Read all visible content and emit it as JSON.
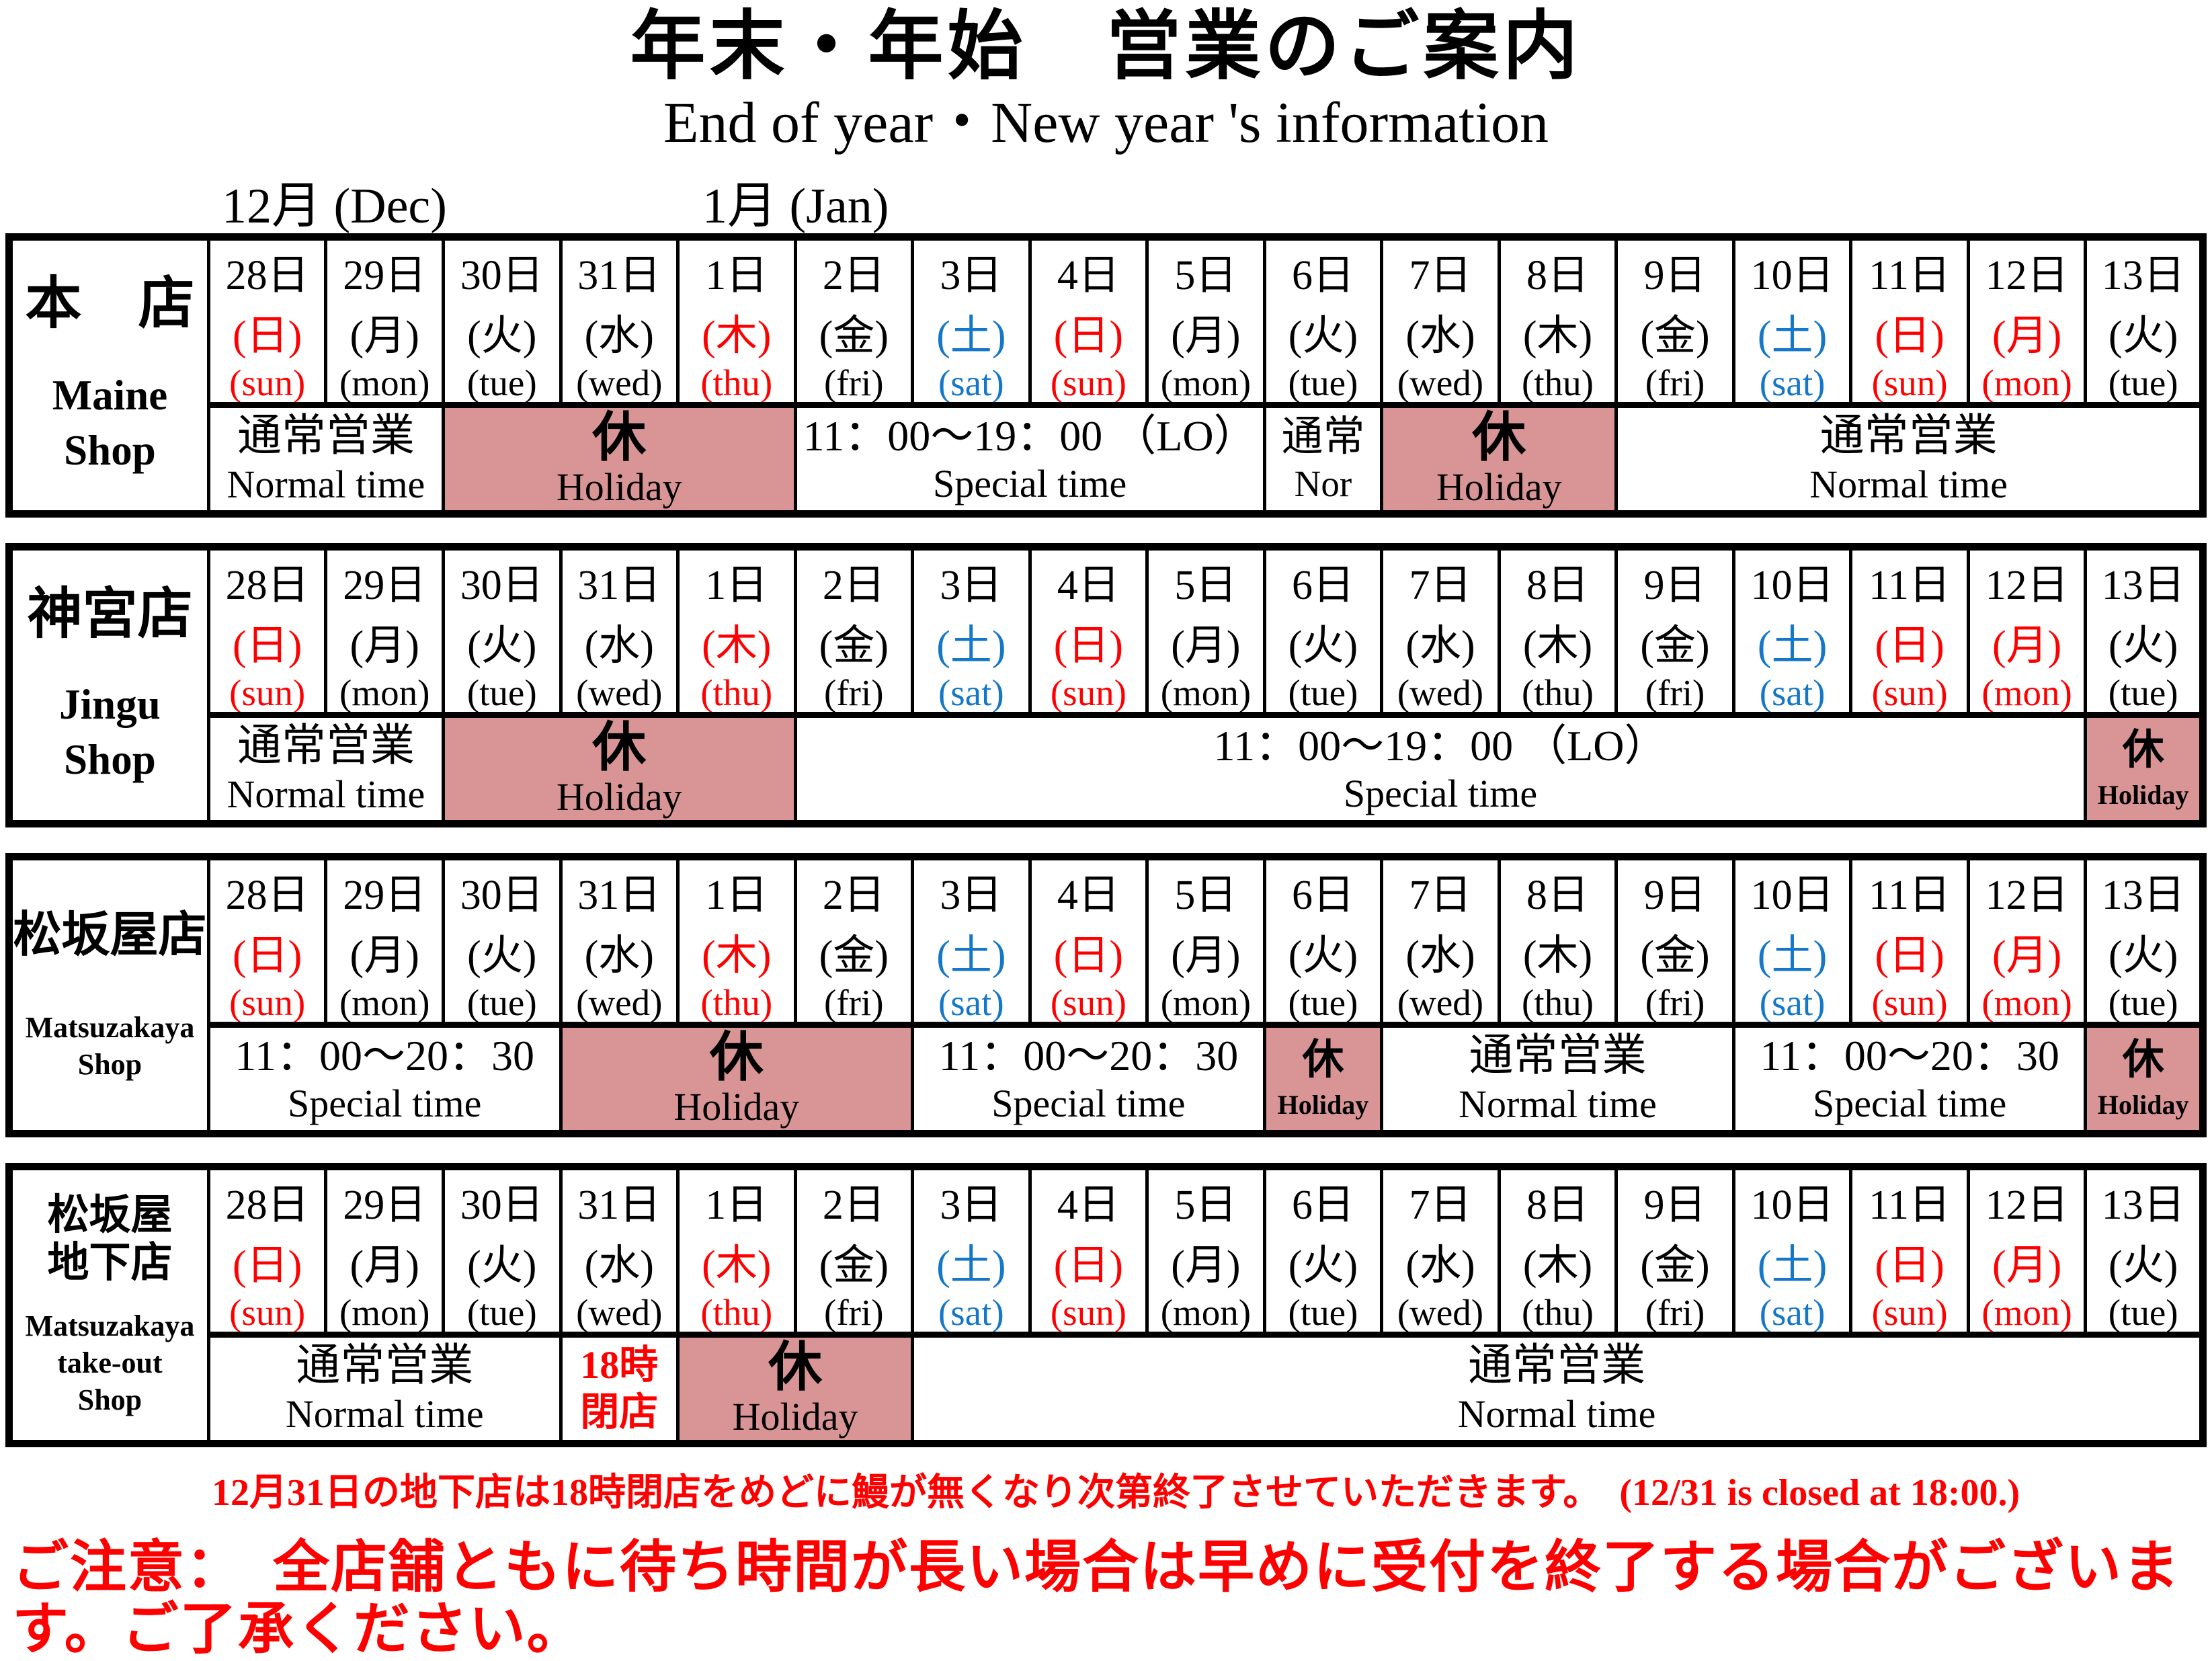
{
  "title": "年末・年始　営業のご案内",
  "subtitle": "End of year・New year 's  information",
  "month_labels": {
    "dec": "12月 (Dec)",
    "jan": "1月 (Jan)"
  },
  "colors": {
    "holiday_bg": "#d99596",
    "red": "#ff0000",
    "blue": "#1577c8",
    "black": "#000000"
  },
  "dates": [
    {
      "day": "28日",
      "jp": "(日)",
      "en": "(sun)",
      "color": "red"
    },
    {
      "day": "29日",
      "jp": "(月)",
      "en": "(mon)",
      "color": "black"
    },
    {
      "day": "30日",
      "jp": "(火)",
      "en": "(tue)",
      "color": "black"
    },
    {
      "day": "31日",
      "jp": "(水)",
      "en": "(wed)",
      "color": "black"
    },
    {
      "day": "1日",
      "jp": "(木)",
      "en": "(thu)",
      "color": "red"
    },
    {
      "day": "2日",
      "jp": "(金)",
      "en": "(fri)",
      "color": "black"
    },
    {
      "day": "3日",
      "jp": "(土)",
      "en": "(sat)",
      "color": "blue"
    },
    {
      "day": "4日",
      "jp": "(日)",
      "en": "(sun)",
      "color": "red"
    },
    {
      "day": "5日",
      "jp": "(月)",
      "en": "(mon)",
      "color": "black"
    },
    {
      "day": "6日",
      "jp": "(火)",
      "en": "(tue)",
      "color": "black"
    },
    {
      "day": "7日",
      "jp": "(水)",
      "en": "(wed)",
      "color": "black"
    },
    {
      "day": "8日",
      "jp": "(木)",
      "en": "(thu)",
      "color": "black"
    },
    {
      "day": "9日",
      "jp": "(金)",
      "en": "(fri)",
      "color": "black"
    },
    {
      "day": "10日",
      "jp": "(土)",
      "en": "(sat)",
      "color": "blue"
    },
    {
      "day": "11日",
      "jp": "(日)",
      "en": "(sun)",
      "color": "red"
    },
    {
      "day": "12日",
      "jp": "(月)",
      "en": "(mon)",
      "color": "red"
    },
    {
      "day": "13日",
      "jp": "(火)",
      "en": "(tue)",
      "color": "black"
    }
  ],
  "tables": [
    {
      "shop_jp_lines": [
        "本　店"
      ],
      "shop_en_lines": [
        "Maine",
        "Shop"
      ],
      "jp_size": "xl",
      "en_size": "lg",
      "hours": [
        {
          "span": 2,
          "type": "normal",
          "jp": "通常営業",
          "en": "Normal time"
        },
        {
          "span": 3,
          "type": "holiday",
          "jp": "休",
          "en": "Holiday"
        },
        {
          "span": 4,
          "type": "special",
          "jp": "11：00～19：00 （LO）",
          "en": "Special time"
        },
        {
          "span": 1,
          "type": "clip",
          "jp": "通常",
          "en": "Nor"
        },
        {
          "span": 2,
          "type": "holiday",
          "jp": "休",
          "en": "Holiday"
        },
        {
          "span": 5,
          "type": "normal",
          "jp": "通常営業",
          "en": "Normal time"
        }
      ]
    },
    {
      "shop_jp_lines": [
        "神宮店"
      ],
      "shop_en_lines": [
        "Jingu",
        "Shop"
      ],
      "jp_size": "lg",
      "en_size": "lg",
      "hours": [
        {
          "span": 2,
          "type": "normal",
          "jp": "通常営業",
          "en": "Normal time"
        },
        {
          "span": 3,
          "type": "holiday",
          "jp": "休",
          "en": "Holiday"
        },
        {
          "span": 11,
          "type": "special",
          "jp": "11：00～19：00 （LO）",
          "en": "Special time"
        },
        {
          "span": 1,
          "type": "holiday-small",
          "jp": "休",
          "en": "Holiday"
        }
      ]
    },
    {
      "shop_jp_lines": [
        "松坂屋店"
      ],
      "shop_en_lines": [
        "Matsuzakaya",
        "Shop"
      ],
      "jp_size": "md",
      "en_size": "sm",
      "hours": [
        {
          "span": 3,
          "type": "special",
          "jp": "11：00～20：30",
          "en": "Special time"
        },
        {
          "span": 3,
          "type": "holiday",
          "jp": "休",
          "en": "Holiday"
        },
        {
          "span": 3,
          "type": "special",
          "jp": "11：00～20：30",
          "en": "Special time"
        },
        {
          "span": 1,
          "type": "holiday-small",
          "jp": "休",
          "en": "Holiday"
        },
        {
          "span": 3,
          "type": "normal",
          "jp": "通常営業",
          "en": "Normal time"
        },
        {
          "span": 3,
          "type": "special",
          "jp": "11：00～20：30",
          "en": "Special time"
        },
        {
          "span": 1,
          "type": "holiday-small",
          "jp": "休",
          "en": "Holiday"
        }
      ]
    },
    {
      "shop_jp_lines": [
        "松坂屋",
        "地下店"
      ],
      "shop_en_lines": [
        "Matsuzakaya",
        "take-out",
        "Shop"
      ],
      "jp_size": "sm",
      "en_size": "sm",
      "hours": [
        {
          "span": 3,
          "type": "normal",
          "jp": "通常営業",
          "en": "Normal time"
        },
        {
          "span": 1,
          "type": "close-early",
          "jp": "18時",
          "en": "閉店"
        },
        {
          "span": 2,
          "type": "holiday",
          "jp": "休",
          "en": "Holiday"
        },
        {
          "span": 11,
          "type": "normal",
          "jp": "通常営業",
          "en": "Normal time"
        }
      ]
    }
  ],
  "notes": {
    "basement": "12月31日の地下店は18時閉店をめどに鰻が無くなり次第終了させていただきます。　(12/31 is closed at 18:00.)",
    "warning": "ご注意：　全店舗ともに待ち時間が長い場合は早めに受付を終了する場合がございます。ご了承ください。"
  }
}
